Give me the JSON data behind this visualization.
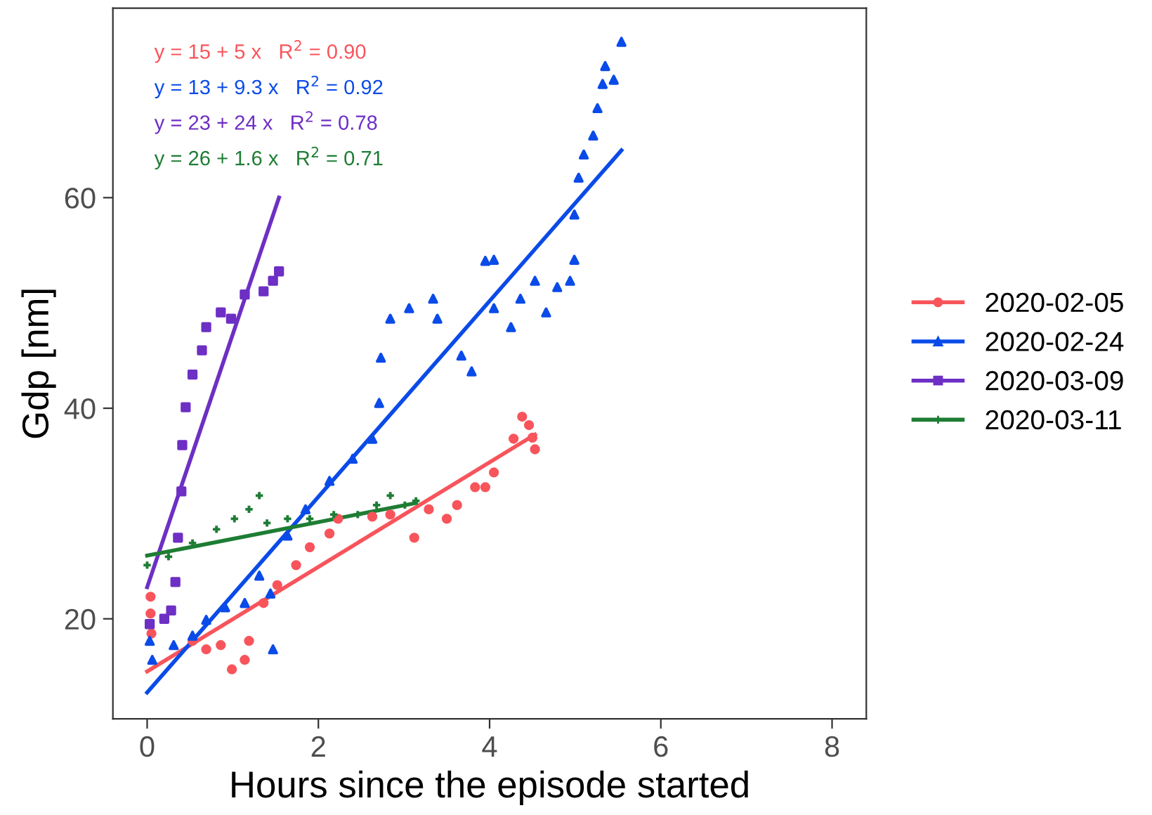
{
  "chart_data": {
    "type": "scatter",
    "xlabel": "Hours since the episode started",
    "ylabel": "Gdp [nm]",
    "xlim": [
      -0.4,
      8.4
    ],
    "xticks": [
      0,
      2,
      4,
      6,
      8
    ],
    "ylim": [
      10.5,
      78
    ],
    "yticks": [
      20,
      40,
      60
    ],
    "grid": false,
    "legend": "right",
    "annotations": [
      "y = 15 + 5 x   R$^{2}$ = 0.90",
      "y = 13 + 9.3 x   R$^{2}$ = 0.92",
      "y = 23 + 24 x   R$^{2}$ = 0.78",
      "y = 26 + 1.6 x   R$^{2}$ = 0.71"
    ],
    "series": [
      {
        "name": "2020-02-05",
        "marker": "circle",
        "color": "#f8545b",
        "x": [
          0.04,
          0.04,
          0.05,
          0.53,
          0.69,
          0.86,
          0.99,
          1.14,
          1.19,
          1.36,
          1.52,
          1.74,
          1.9,
          2.13,
          2.23,
          2.63,
          2.84,
          3.12,
          3.29,
          3.5,
          3.62,
          3.83,
          3.95,
          4.05,
          4.28,
          4.38,
          4.46,
          4.5,
          4.53
        ],
        "values": [
          22.1,
          20.5,
          18.6,
          17.9,
          17.1,
          17.5,
          15.2,
          16.1,
          17.9,
          21.5,
          23.2,
          25.1,
          26.8,
          28.1,
          29.5,
          29.7,
          29.9,
          27.7,
          30.4,
          29.5,
          30.8,
          32.5,
          32.5,
          33.9,
          37.1,
          39.2,
          38.4,
          37.2,
          36.1
        ]
      },
      {
        "name": "2020-02-24",
        "marker": "triangle",
        "color": "#0a4be8",
        "x": [
          0.03,
          0.06,
          0.31,
          0.53,
          0.69,
          0.91,
          1.14,
          1.31,
          1.44,
          1.47,
          1.64,
          1.85,
          2.13,
          2.4,
          2.63,
          2.71,
          2.73,
          2.84,
          3.06,
          3.34,
          3.39,
          3.67,
          3.79,
          3.95,
          4.05,
          4.05,
          4.25,
          4.36,
          4.53,
          4.66,
          4.79,
          4.94,
          4.99,
          4.99,
          5.04,
          5.1,
          5.21,
          5.26,
          5.32,
          5.35,
          5.45,
          5.54
        ],
        "values": [
          17.9,
          16.1,
          17.5,
          18.4,
          19.9,
          21.1,
          21.5,
          24.1,
          22.4,
          17.1,
          27.9,
          30.4,
          33.1,
          35.2,
          37.1,
          40.5,
          44.8,
          48.5,
          49.5,
          50.4,
          48.5,
          45.0,
          43.5,
          54.0,
          54.1,
          49.5,
          47.7,
          50.4,
          52.1,
          49.1,
          51.5,
          52.1,
          54.1,
          58.4,
          61.9,
          64.1,
          65.9,
          68.5,
          70.8,
          72.5,
          71.2,
          74.8
        ]
      },
      {
        "name": "2020-03-09",
        "marker": "square",
        "color": "#6d2fc4",
        "x": [
          0.03,
          0.2,
          0.28,
          0.33,
          0.36,
          0.4,
          0.41,
          0.45,
          0.53,
          0.64,
          0.69,
          0.86,
          0.98,
          1.14,
          1.36,
          1.47,
          1.54
        ],
        "values": [
          19.5,
          20.0,
          20.8,
          23.5,
          27.7,
          32.1,
          36.5,
          40.1,
          43.2,
          45.5,
          47.7,
          49.1,
          48.5,
          50.8,
          51.1,
          52.1,
          53.0
        ]
      },
      {
        "name": "2020-03-11",
        "marker": "cross",
        "color": "#1e7d34",
        "x": [
          0.0,
          0.25,
          0.53,
          0.81,
          1.02,
          1.19,
          1.31,
          1.4,
          1.64,
          1.9,
          2.18,
          2.46,
          2.68,
          2.84,
          3.01,
          3.14
        ],
        "values": [
          25.1,
          25.9,
          27.2,
          28.5,
          29.5,
          30.4,
          31.7,
          29.1,
          29.5,
          29.5,
          29.9,
          29.9,
          30.8,
          31.7,
          30.8,
          31.2
        ]
      },
      {
        "type": "line",
        "color": "#f8545b",
        "x": [
          0,
          4.53
        ],
        "values": [
          15,
          37.5
        ]
      },
      {
        "type": "line",
        "color": "#0a4be8",
        "x": [
          0,
          5.54
        ],
        "values": [
          13,
          64.5
        ]
      },
      {
        "type": "line",
        "color": "#6d2fc4",
        "x": [
          0,
          1.54
        ],
        "values": [
          23,
          60
        ]
      },
      {
        "type": "line",
        "color": "#1e7d34",
        "x": [
          0,
          3.14
        ],
        "values": [
          26,
          31
        ]
      }
    ]
  }
}
